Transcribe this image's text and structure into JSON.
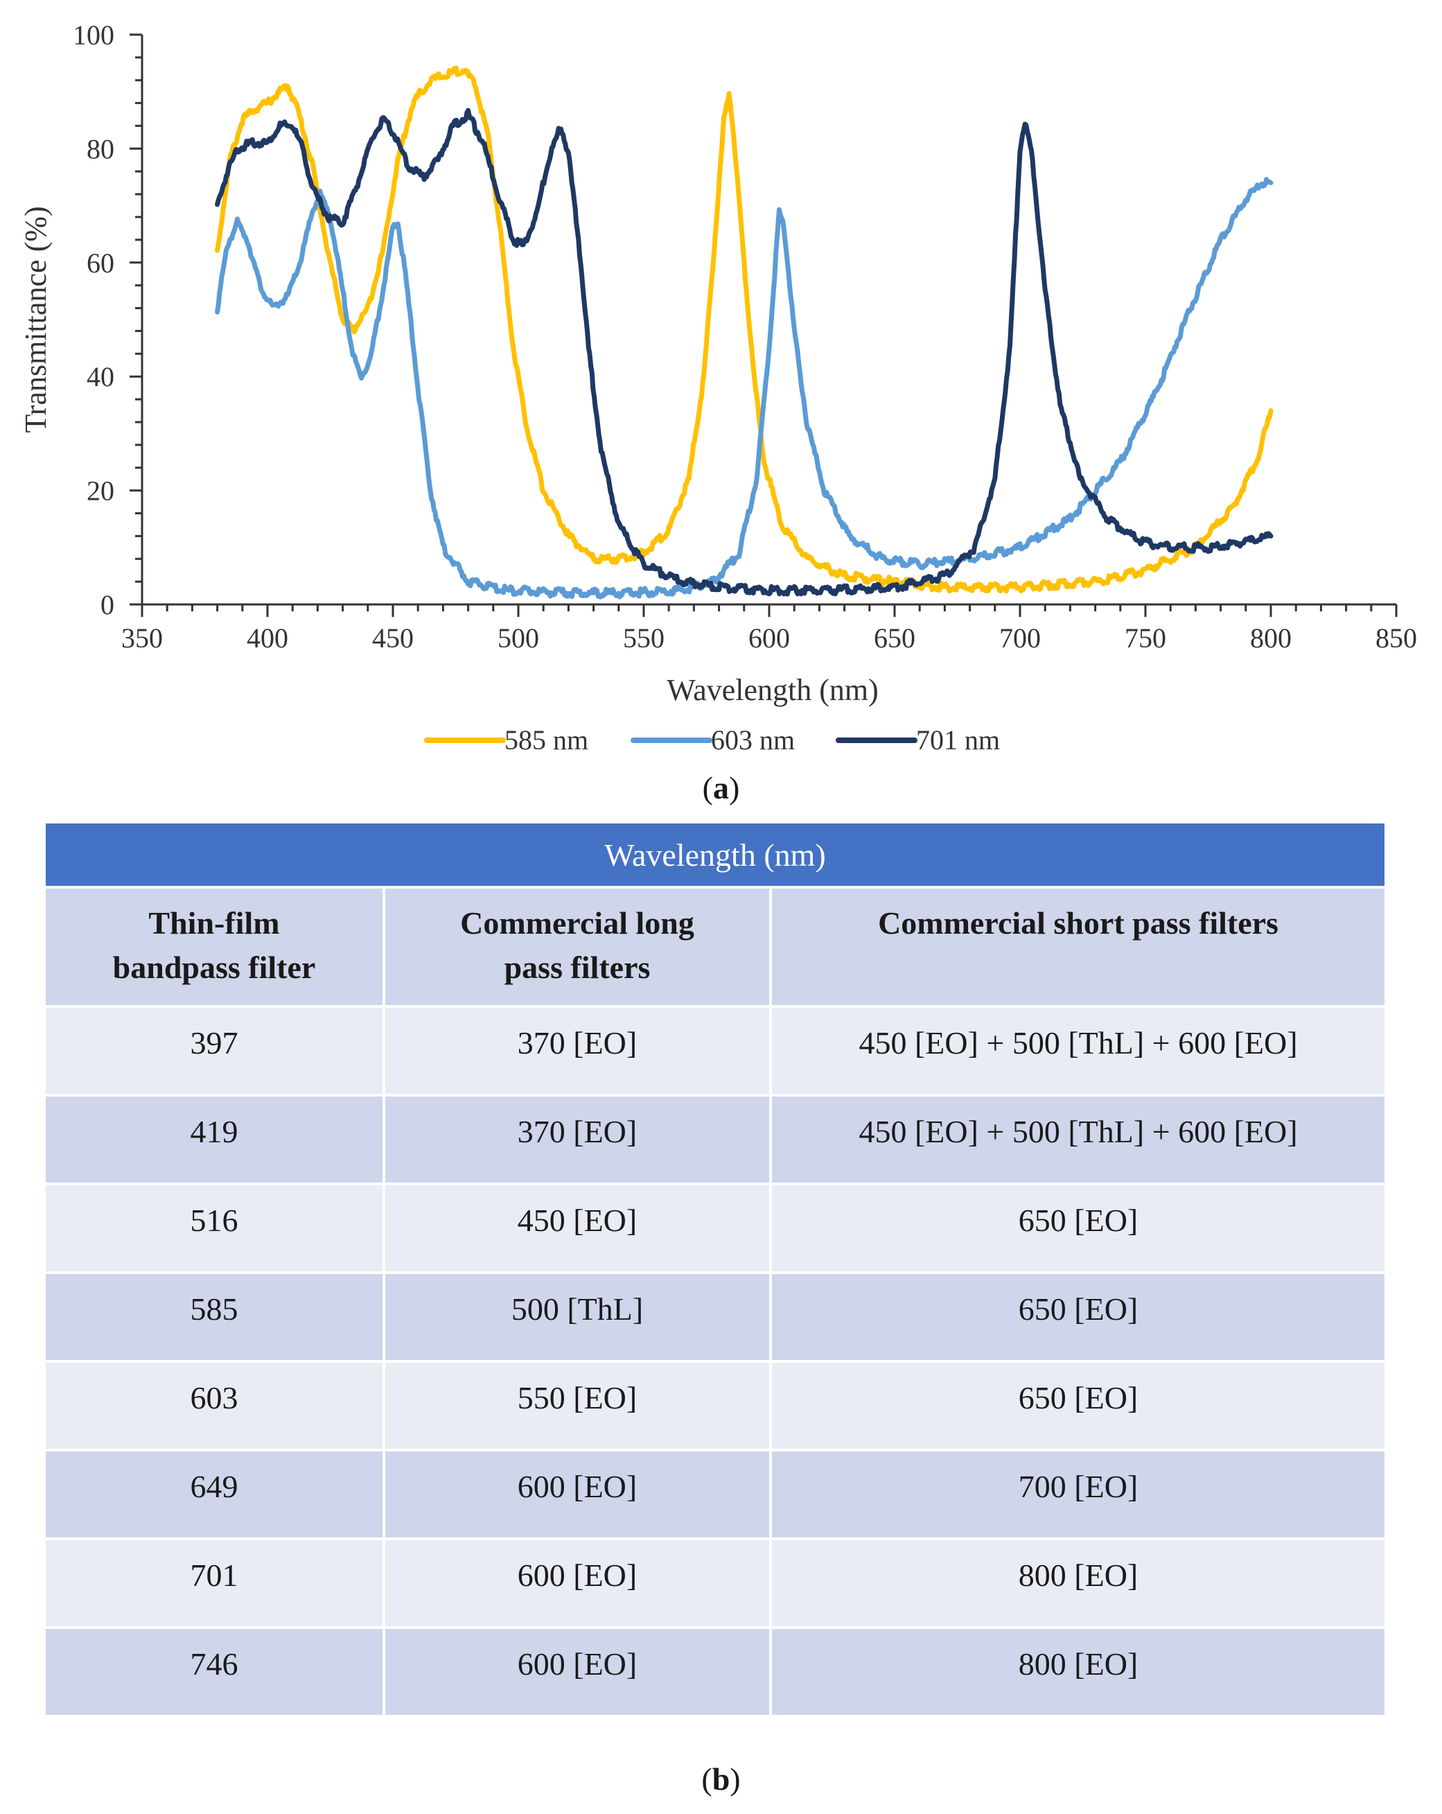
{
  "chart_data": {
    "type": "line",
    "title": "",
    "xlabel": "Wavelength  (nm)",
    "ylabel": "Transmittance  (%)",
    "xlim": [
      350,
      850
    ],
    "ylim": [
      0,
      100
    ],
    "xticks": [
      350,
      400,
      450,
      500,
      550,
      600,
      650,
      700,
      750,
      800,
      850
    ],
    "yticks": [
      0,
      20,
      40,
      60,
      80,
      100
    ],
    "grid": false,
    "legend_position": "bottom",
    "series": [
      {
        "name": "585 nm",
        "color": "#ffc000",
        "points": [
          [
            380,
            62
          ],
          [
            385,
            78
          ],
          [
            390,
            85
          ],
          [
            395,
            87
          ],
          [
            400,
            88
          ],
          [
            405,
            90
          ],
          [
            408,
            91
          ],
          [
            412,
            87
          ],
          [
            418,
            77
          ],
          [
            424,
            62
          ],
          [
            430,
            50
          ],
          [
            434,
            48
          ],
          [
            440,
            52
          ],
          [
            446,
            62
          ],
          [
            452,
            78
          ],
          [
            458,
            88
          ],
          [
            465,
            92
          ],
          [
            472,
            93
          ],
          [
            478,
            94
          ],
          [
            483,
            91
          ],
          [
            488,
            82
          ],
          [
            493,
            65
          ],
          [
            498,
            45
          ],
          [
            503,
            32
          ],
          [
            510,
            20
          ],
          [
            520,
            12
          ],
          [
            530,
            8
          ],
          [
            540,
            8
          ],
          [
            550,
            9
          ],
          [
            560,
            13
          ],
          [
            568,
            22
          ],
          [
            574,
            40
          ],
          [
            578,
            62
          ],
          [
            582,
            85
          ],
          [
            584,
            90
          ],
          [
            586,
            82
          ],
          [
            590,
            60
          ],
          [
            594,
            40
          ],
          [
            598,
            25
          ],
          [
            605,
            14
          ],
          [
            615,
            8
          ],
          [
            630,
            5
          ],
          [
            650,
            4
          ],
          [
            670,
            3
          ],
          [
            700,
            3
          ],
          [
            730,
            4
          ],
          [
            750,
            6
          ],
          [
            770,
            10
          ],
          [
            785,
            17
          ],
          [
            795,
            26
          ],
          [
            800,
            34
          ]
        ]
      },
      {
        "name": "603 nm",
        "color": "#5b9bd5",
        "points": [
          [
            380,
            52
          ],
          [
            384,
            63
          ],
          [
            388,
            67
          ],
          [
            392,
            64
          ],
          [
            397,
            56
          ],
          [
            402,
            52
          ],
          [
            408,
            54
          ],
          [
            413,
            60
          ],
          [
            418,
            69
          ],
          [
            421,
            72
          ],
          [
            425,
            68
          ],
          [
            430,
            55
          ],
          [
            434,
            44
          ],
          [
            437,
            40
          ],
          [
            441,
            43
          ],
          [
            446,
            55
          ],
          [
            450,
            66
          ],
          [
            452,
            67
          ],
          [
            455,
            58
          ],
          [
            460,
            38
          ],
          [
            465,
            20
          ],
          [
            470,
            10
          ],
          [
            480,
            4
          ],
          [
            495,
            2.5
          ],
          [
            520,
            2
          ],
          [
            545,
            2
          ],
          [
            565,
            2.5
          ],
          [
            578,
            4
          ],
          [
            588,
            9
          ],
          [
            595,
            22
          ],
          [
            600,
            45
          ],
          [
            604,
            69
          ],
          [
            606,
            66
          ],
          [
            610,
            48
          ],
          [
            615,
            32
          ],
          [
            622,
            20
          ],
          [
            632,
            12
          ],
          [
            645,
            8
          ],
          [
            660,
            7
          ],
          [
            680,
            8
          ],
          [
            700,
            10
          ],
          [
            720,
            15
          ],
          [
            740,
            25
          ],
          [
            755,
            38
          ],
          [
            768,
            52
          ],
          [
            780,
            64
          ],
          [
            790,
            71
          ],
          [
            796,
            74
          ],
          [
            800,
            74
          ]
        ]
      },
      {
        "name": "701 nm",
        "color": "#1f3864",
        "points": [
          [
            380,
            70
          ],
          [
            384,
            76
          ],
          [
            388,
            80
          ],
          [
            394,
            81
          ],
          [
            400,
            81
          ],
          [
            405,
            84
          ],
          [
            410,
            84
          ],
          [
            414,
            80
          ],
          [
            418,
            73
          ],
          [
            424,
            68
          ],
          [
            430,
            67
          ],
          [
            436,
            74
          ],
          [
            442,
            82
          ],
          [
            446,
            85
          ],
          [
            450,
            83
          ],
          [
            456,
            77
          ],
          [
            462,
            75
          ],
          [
            468,
            78
          ],
          [
            474,
            84
          ],
          [
            480,
            86
          ],
          [
            486,
            81
          ],
          [
            492,
            72
          ],
          [
            498,
            64
          ],
          [
            502,
            63
          ],
          [
            507,
            68
          ],
          [
            512,
            78
          ],
          [
            517,
            84
          ],
          [
            520,
            79
          ],
          [
            524,
            64
          ],
          [
            528,
            45
          ],
          [
            533,
            27
          ],
          [
            540,
            14
          ],
          [
            550,
            7
          ],
          [
            565,
            4
          ],
          [
            580,
            3
          ],
          [
            600,
            2.5
          ],
          [
            625,
            2.5
          ],
          [
            650,
            3
          ],
          [
            670,
            5
          ],
          [
            682,
            10
          ],
          [
            690,
            22
          ],
          [
            696,
            45
          ],
          [
            700,
            80
          ],
          [
            702,
            85
          ],
          [
            705,
            78
          ],
          [
            710,
            55
          ],
          [
            716,
            35
          ],
          [
            724,
            22
          ],
          [
            735,
            15
          ],
          [
            748,
            11
          ],
          [
            760,
            10
          ],
          [
            775,
            10
          ],
          [
            790,
            11
          ],
          [
            800,
            12
          ]
        ]
      }
    ]
  },
  "captions": {
    "a": "(a)",
    "b": "(b)"
  },
  "table": {
    "banner": "Wavelength (nm)",
    "headers": [
      [
        "Thin-film",
        "bandpass filter"
      ],
      [
        "Commercial long",
        "pass filters"
      ],
      [
        "Commercial short pass filters",
        ""
      ]
    ],
    "rows": [
      [
        "397",
        "370 [EO]",
        "450 [EO] + 500 [ThL] + 600 [EO]"
      ],
      [
        "419",
        "370 [EO]",
        "450 [EO] + 500 [ThL] + 600 [EO]"
      ],
      [
        "516",
        "450 [EO]",
        "650 [EO]"
      ],
      [
        "585",
        "500 [ThL]",
        "650 [EO]"
      ],
      [
        "603",
        "550 [EO]",
        "650 [EO]"
      ],
      [
        "649",
        "600 [EO]",
        "700 [EO]"
      ],
      [
        "701",
        "600 [EO]",
        "800 [EO]"
      ],
      [
        "746",
        "600 [EO]",
        "800 [EO]"
      ]
    ]
  }
}
